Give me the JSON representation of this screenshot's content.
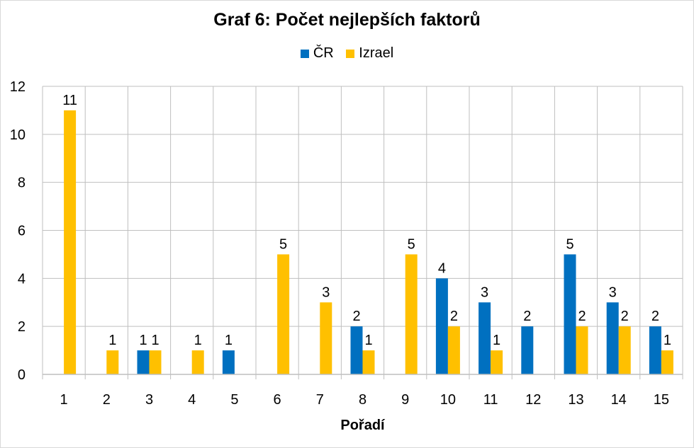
{
  "chart_data": {
    "type": "bar",
    "title": "Graf 6: Počet nejlepších faktorů",
    "xlabel": "Pořadí",
    "ylabel": "",
    "categories": [
      "1",
      "2",
      "3",
      "4",
      "5",
      "6",
      "7",
      "8",
      "9",
      "10",
      "11",
      "12",
      "13",
      "14",
      "15"
    ],
    "series": [
      {
        "name": "ČR",
        "color": "#0070C0",
        "values": [
          0,
          0,
          1,
          0,
          1,
          0,
          0,
          2,
          0,
          4,
          3,
          2,
          5,
          3,
          2
        ]
      },
      {
        "name": "Izrael",
        "color": "#FFC000",
        "values": [
          11,
          1,
          1,
          1,
          0,
          5,
          3,
          1,
          5,
          2,
          1,
          0,
          2,
          2,
          1
        ]
      }
    ],
    "ylim": [
      0,
      12
    ],
    "yticks": [
      0,
      2,
      4,
      6,
      8,
      10,
      12
    ],
    "grid": true,
    "legend_position": "top",
    "data_labels": true
  }
}
